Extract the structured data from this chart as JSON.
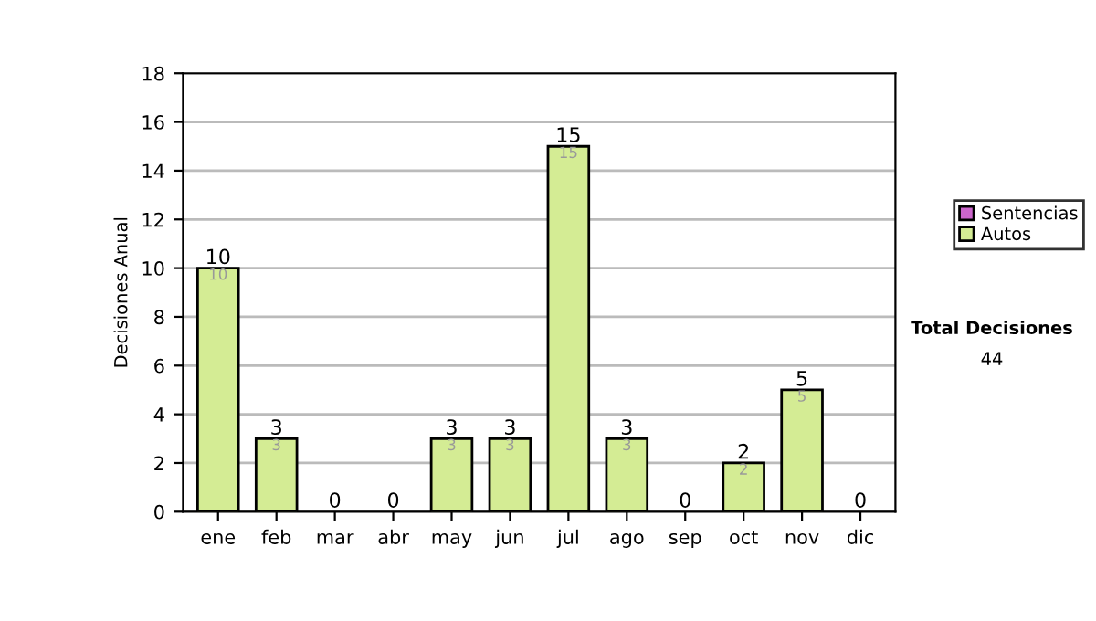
{
  "chart_data": {
    "type": "bar",
    "stacked": true,
    "ylabel": "Decisiones Anual",
    "categories": [
      "ene",
      "feb",
      "mar",
      "abr",
      "may",
      "jun",
      "jul",
      "ago",
      "sep",
      "oct",
      "nov",
      "dic"
    ],
    "series": [
      {
        "name": "Sentencias",
        "color": "#cc66cc",
        "values": [
          0,
          0,
          0,
          0,
          0,
          0,
          0,
          0,
          0,
          0,
          0,
          0
        ]
      },
      {
        "name": "Autos",
        "color": "#d4ec94",
        "values": [
          10,
          3,
          0,
          0,
          3,
          3,
          15,
          3,
          0,
          2,
          5,
          0
        ],
        "value_labels": [
          "10",
          "3",
          null,
          null,
          "3",
          "3",
          "15",
          "3",
          null,
          "2",
          "5",
          null
        ]
      }
    ],
    "totals": [
      "10",
      "3",
      "0",
      "0",
      "3",
      "3",
      "15",
      "3",
      "0",
      "2",
      "5",
      "0"
    ],
    "ylim": [
      0,
      18
    ],
    "yticks": [
      0,
      2,
      4,
      6,
      8,
      10,
      12,
      14,
      16,
      18
    ],
    "grid": "y",
    "legend": "right",
    "annotations": [
      "Total Decisiones",
      "44"
    ]
  }
}
